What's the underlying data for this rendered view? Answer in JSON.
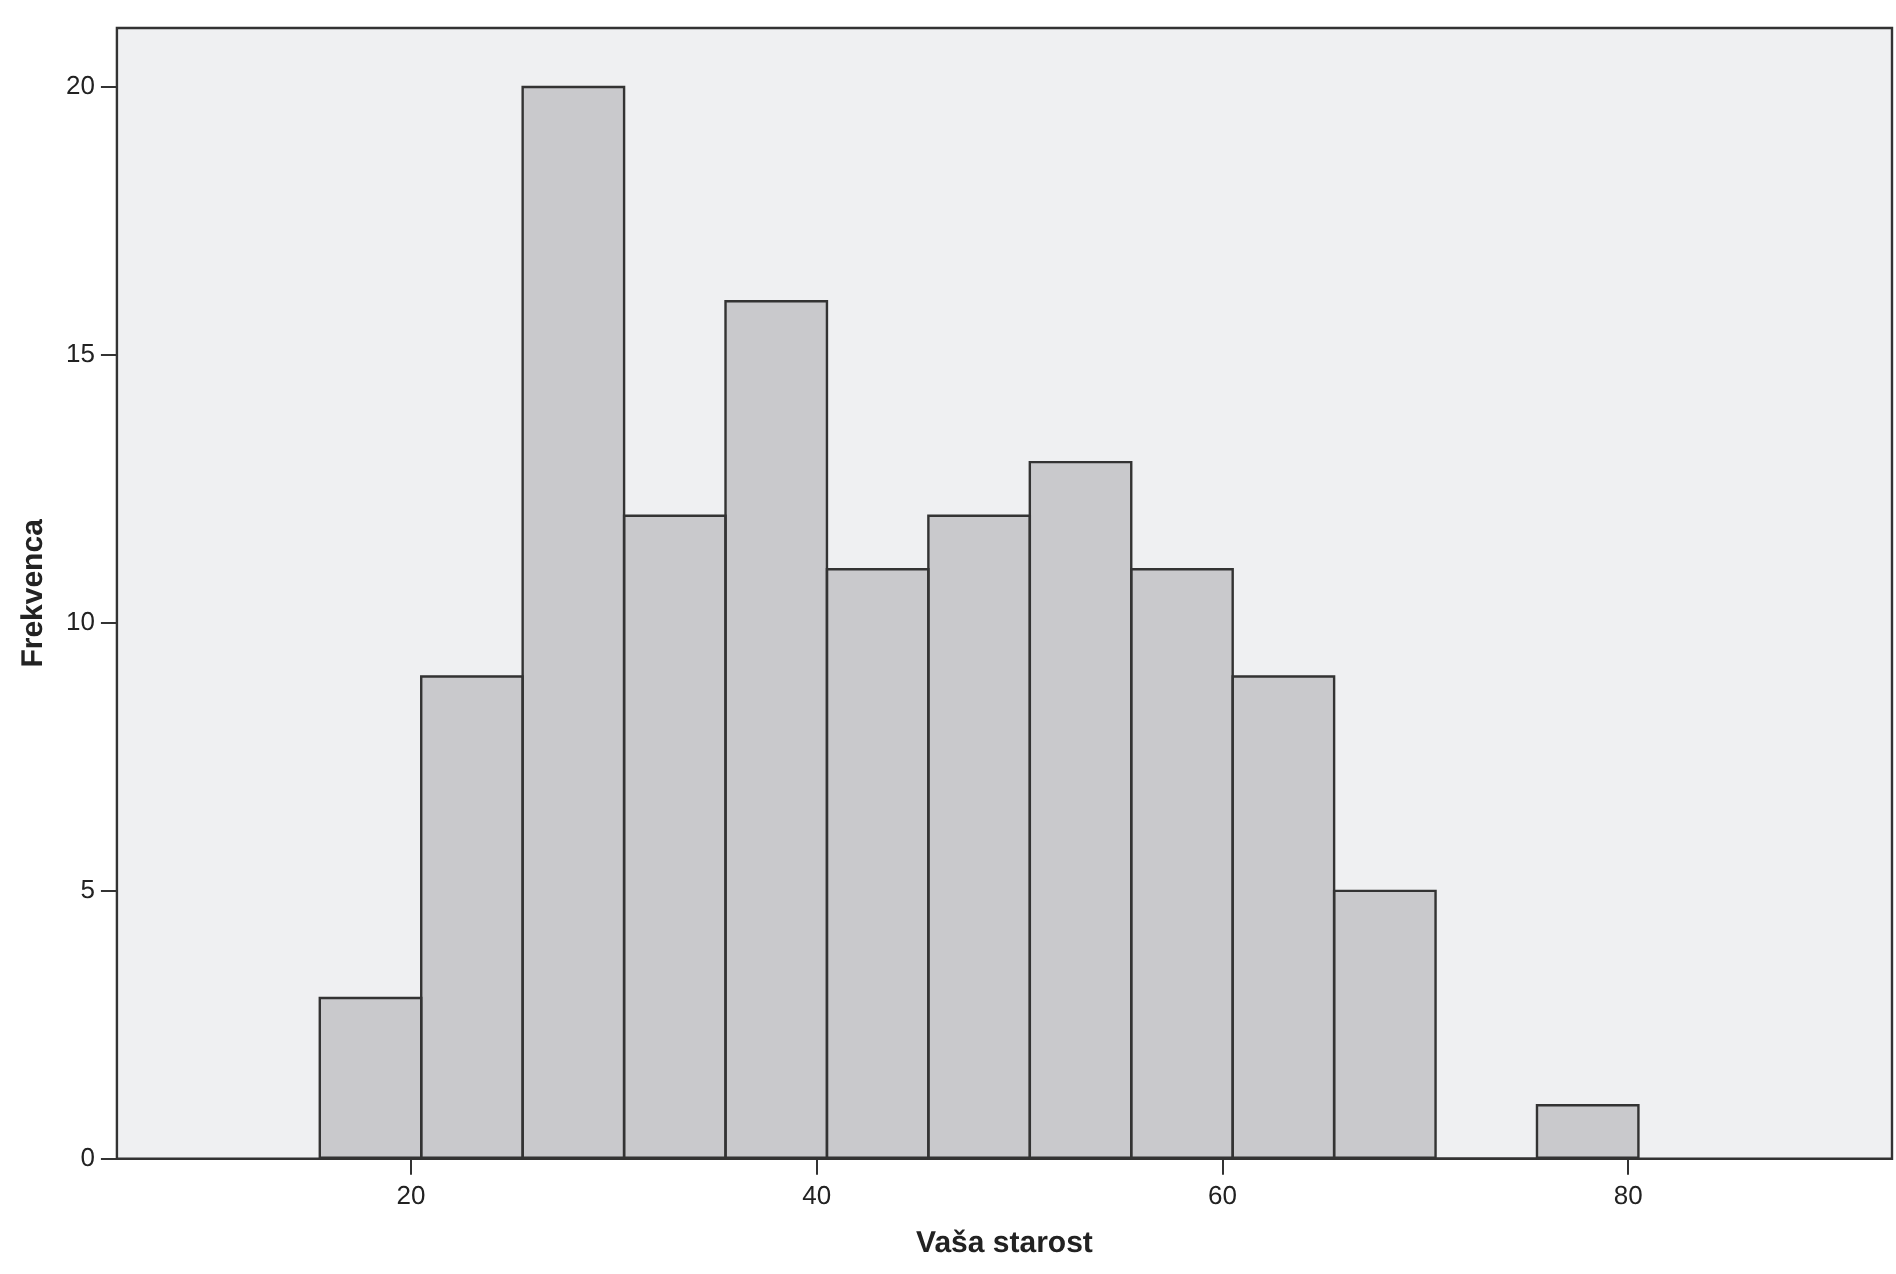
{
  "chart_data": {
    "type": "histogram",
    "xlabel": "Vaša starost",
    "ylabel": "Frekvenca",
    "bins": [
      15.5,
      20.5,
      25.5,
      30.5,
      35.5,
      40.5,
      45.5,
      50.5,
      55.5,
      60.5,
      65.5,
      70.5,
      75.5,
      80.5
    ],
    "values": [
      3,
      9,
      20,
      12,
      16,
      11,
      12,
      13,
      11,
      9,
      5,
      0,
      1
    ],
    "color": "#c9c9cc",
    "xlim": [
      5.5,
      93
    ],
    "xticks": [
      20,
      40,
      60,
      80
    ],
    "ylim": [
      0,
      21.1
    ],
    "yticks": [
      0,
      5,
      10,
      15,
      20
    ],
    "grid": false,
    "legend": false
  }
}
